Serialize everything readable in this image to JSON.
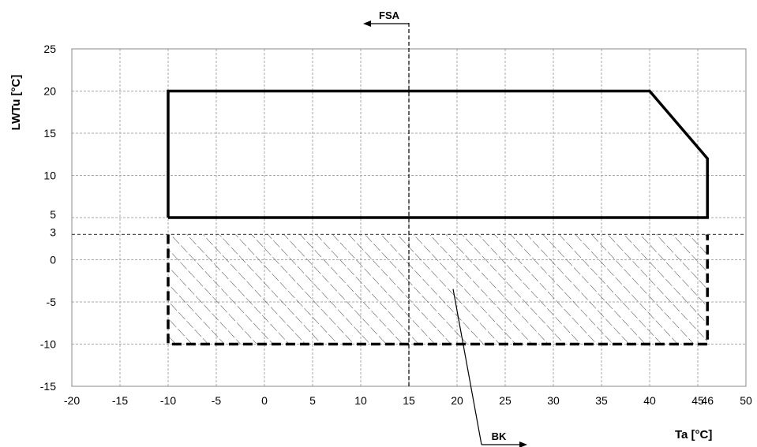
{
  "chart_data": {
    "type": "line",
    "title": "",
    "xlabel": "Ta [°C]",
    "ylabel": "LWTu [°C]",
    "xlim": [
      -20,
      50
    ],
    "ylim": [
      -15,
      25
    ],
    "x_ticks": [
      -20,
      -15,
      -10,
      -5,
      0,
      5,
      10,
      15,
      20,
      25,
      30,
      35,
      40,
      45,
      46,
      50
    ],
    "y_ticks": [
      -15,
      -10,
      -5,
      0,
      3,
      5,
      10,
      15,
      20,
      25
    ],
    "grid": true,
    "series": [
      {
        "style": "solid-thick",
        "points": [
          [
            -10,
            5
          ],
          [
            -10,
            20
          ],
          [
            40,
            20
          ],
          [
            46,
            12
          ],
          [
            46,
            5
          ],
          [
            -10,
            5
          ]
        ]
      },
      {
        "style": "dashed-thick",
        "points": [
          [
            -10,
            3
          ],
          [
            -10,
            -10
          ],
          [
            46,
            -10
          ],
          [
            46,
            3
          ]
        ]
      },
      {
        "style": "dashed-thin",
        "points": [
          [
            -20,
            3
          ],
          [
            50,
            3
          ]
        ]
      },
      {
        "style": "dashed-thin-vertical",
        "points": [
          [
            15,
            -15
          ],
          [
            15,
            28
          ]
        ]
      }
    ],
    "hatched_region": {
      "x": [
        -10,
        46
      ],
      "y": [
        -10,
        3
      ]
    },
    "annotations": [
      {
        "text": "FSA",
        "at": [
          15,
          28
        ],
        "arrow": "left"
      },
      {
        "text": "BK",
        "at": [
          22,
          -19
        ],
        "points_to": [
          20,
          -3
        ],
        "arrow": "right"
      }
    ]
  }
}
